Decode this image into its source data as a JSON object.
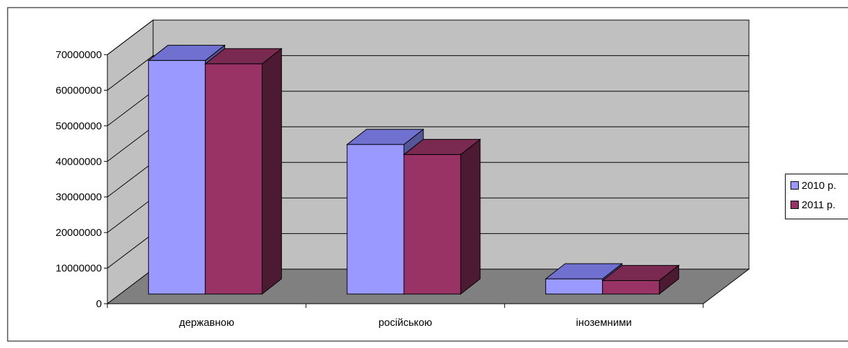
{
  "chart_data": {
    "type": "bar",
    "categories": [
      "державною",
      "російською",
      "іноземними"
    ],
    "series": [
      {
        "name": "2010 р.",
        "values": [
          69500000,
          44500000,
          4500000
        ]
      },
      {
        "name": "2011 р.",
        "values": [
          68500000,
          41500000,
          4000000
        ]
      }
    ],
    "y_ticks": [
      "0",
      "10000000",
      "20000000",
      "30000000",
      "40000000",
      "50000000",
      "60000000",
      "70000000"
    ],
    "ylim": [
      0,
      70000000
    ],
    "grid": true,
    "legend_position": "right",
    "three_d": true
  },
  "colors": {
    "series_2010_front": "#9999ff",
    "series_2010_top": "#7070d0",
    "series_2010_side": "#555599",
    "series_2011_front": "#993366",
    "series_2011_top": "#7a2950",
    "series_2011_side": "#4d1a33",
    "back_wall": "#c0c0c0",
    "side_wall": "#c0c0c0",
    "floor": "#808080"
  }
}
